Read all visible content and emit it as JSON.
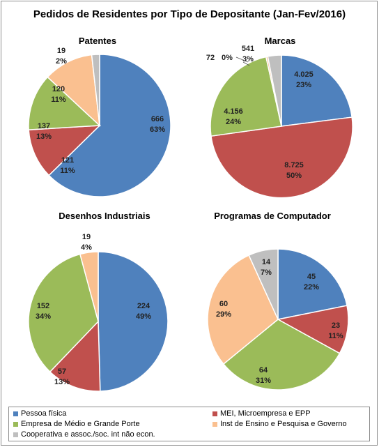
{
  "title": "Pedidos de Residentes por Tipo de Depositante  (Jan-Fev/2016)",
  "legend": [
    {
      "label": "Pessoa física",
      "color": "#4f81bd"
    },
    {
      "label": "MEI, Microempresa e EPP",
      "color": "#c0504d"
    },
    {
      "label": "Empresa de Médio e Grande Porte",
      "color": "#9bbb59"
    },
    {
      "label": "Inst de Ensino e Pesquisa e Governo",
      "color": "#fac090"
    },
    {
      "label": "Cooperativa e assoc./soc. int não econ.",
      "color": "#bfbfbf"
    }
  ],
  "chart_data": [
    {
      "type": "pie",
      "title": "Patentes",
      "categories": [
        "Pessoa física",
        "MEI, Microempresa e EPP",
        "Empresa de Médio e Grande Porte",
        "Inst de Ensino e Pesquisa e Governo",
        "Cooperativa e assoc./soc. int não econ."
      ],
      "values": [
        666,
        121,
        137,
        120,
        19
      ],
      "value_labels": [
        "666",
        "121",
        "137",
        "120",
        "19"
      ],
      "percent_labels": [
        "63%",
        "11%",
        "13%",
        "11%",
        "2%"
      ]
    },
    {
      "type": "pie",
      "title": "Marcas",
      "categories": [
        "Pessoa física",
        "MEI, Microempresa e EPP",
        "Empresa de Médio e Grande Porte",
        "Inst de Ensino e Pesquisa e Governo",
        "Cooperativa e assoc./soc. int não econ."
      ],
      "values": [
        4025,
        8725,
        4156,
        72,
        541
      ],
      "value_labels": [
        "4.025",
        "8.725",
        "4.156",
        "72",
        "541"
      ],
      "percent_labels": [
        "23%",
        "50%",
        "24%",
        "0%",
        "3%"
      ]
    },
    {
      "type": "pie",
      "title": "Desenhos Industriais",
      "categories": [
        "Pessoa física",
        "MEI, Microempresa e EPP",
        "Empresa de Médio e Grande Porte",
        "Inst de Ensino e Pesquisa e Governo",
        "Cooperativa e assoc./soc. int não econ."
      ],
      "values": [
        224,
        57,
        152,
        19,
        0
      ],
      "value_labels": [
        "224",
        "57",
        "152",
        "19",
        ""
      ],
      "percent_labels": [
        "49%",
        "13%",
        "34%",
        "4%",
        ""
      ]
    },
    {
      "type": "pie",
      "title": "Programas de Computador",
      "categories": [
        "Pessoa física",
        "MEI, Microempresa e EPP",
        "Empresa de Médio e Grande Porte",
        "Inst de Ensino e Pesquisa e Governo",
        "Cooperativa e assoc./soc. int não econ."
      ],
      "values": [
        45,
        23,
        64,
        60,
        14
      ],
      "value_labels": [
        "45",
        "23",
        "64",
        "60",
        "14"
      ],
      "percent_labels": [
        "22%",
        "11%",
        "31%",
        "29%",
        "7%"
      ]
    }
  ]
}
